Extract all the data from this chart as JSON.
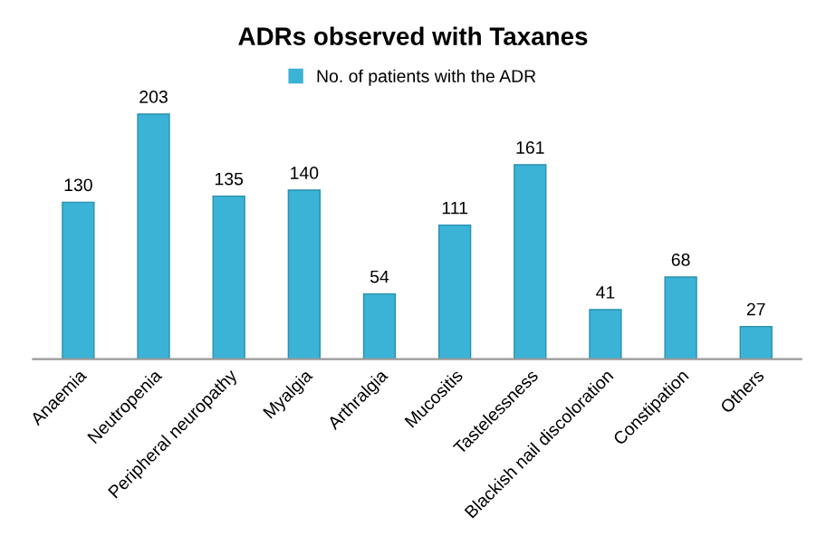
{
  "chart_data": {
    "type": "bar",
    "title": "ADRs observed with Taxanes",
    "categories": [
      "Anaemia",
      "Neutropenia",
      "Peripheral neuropathy",
      "Myalgia",
      "Arthralgia",
      "Mucositis",
      "Tastelessness",
      "Blackish nail discoloration",
      "Constipation",
      "Others"
    ],
    "series": [
      {
        "name": "No. of patients with the ADR",
        "color": "#3bb3d6",
        "values": [
          130,
          203,
          135,
          140,
          54,
          111,
          161,
          41,
          68,
          27
        ]
      }
    ],
    "data_labels": true,
    "legend": "top",
    "grid": false,
    "tick_labels": "x"
  }
}
